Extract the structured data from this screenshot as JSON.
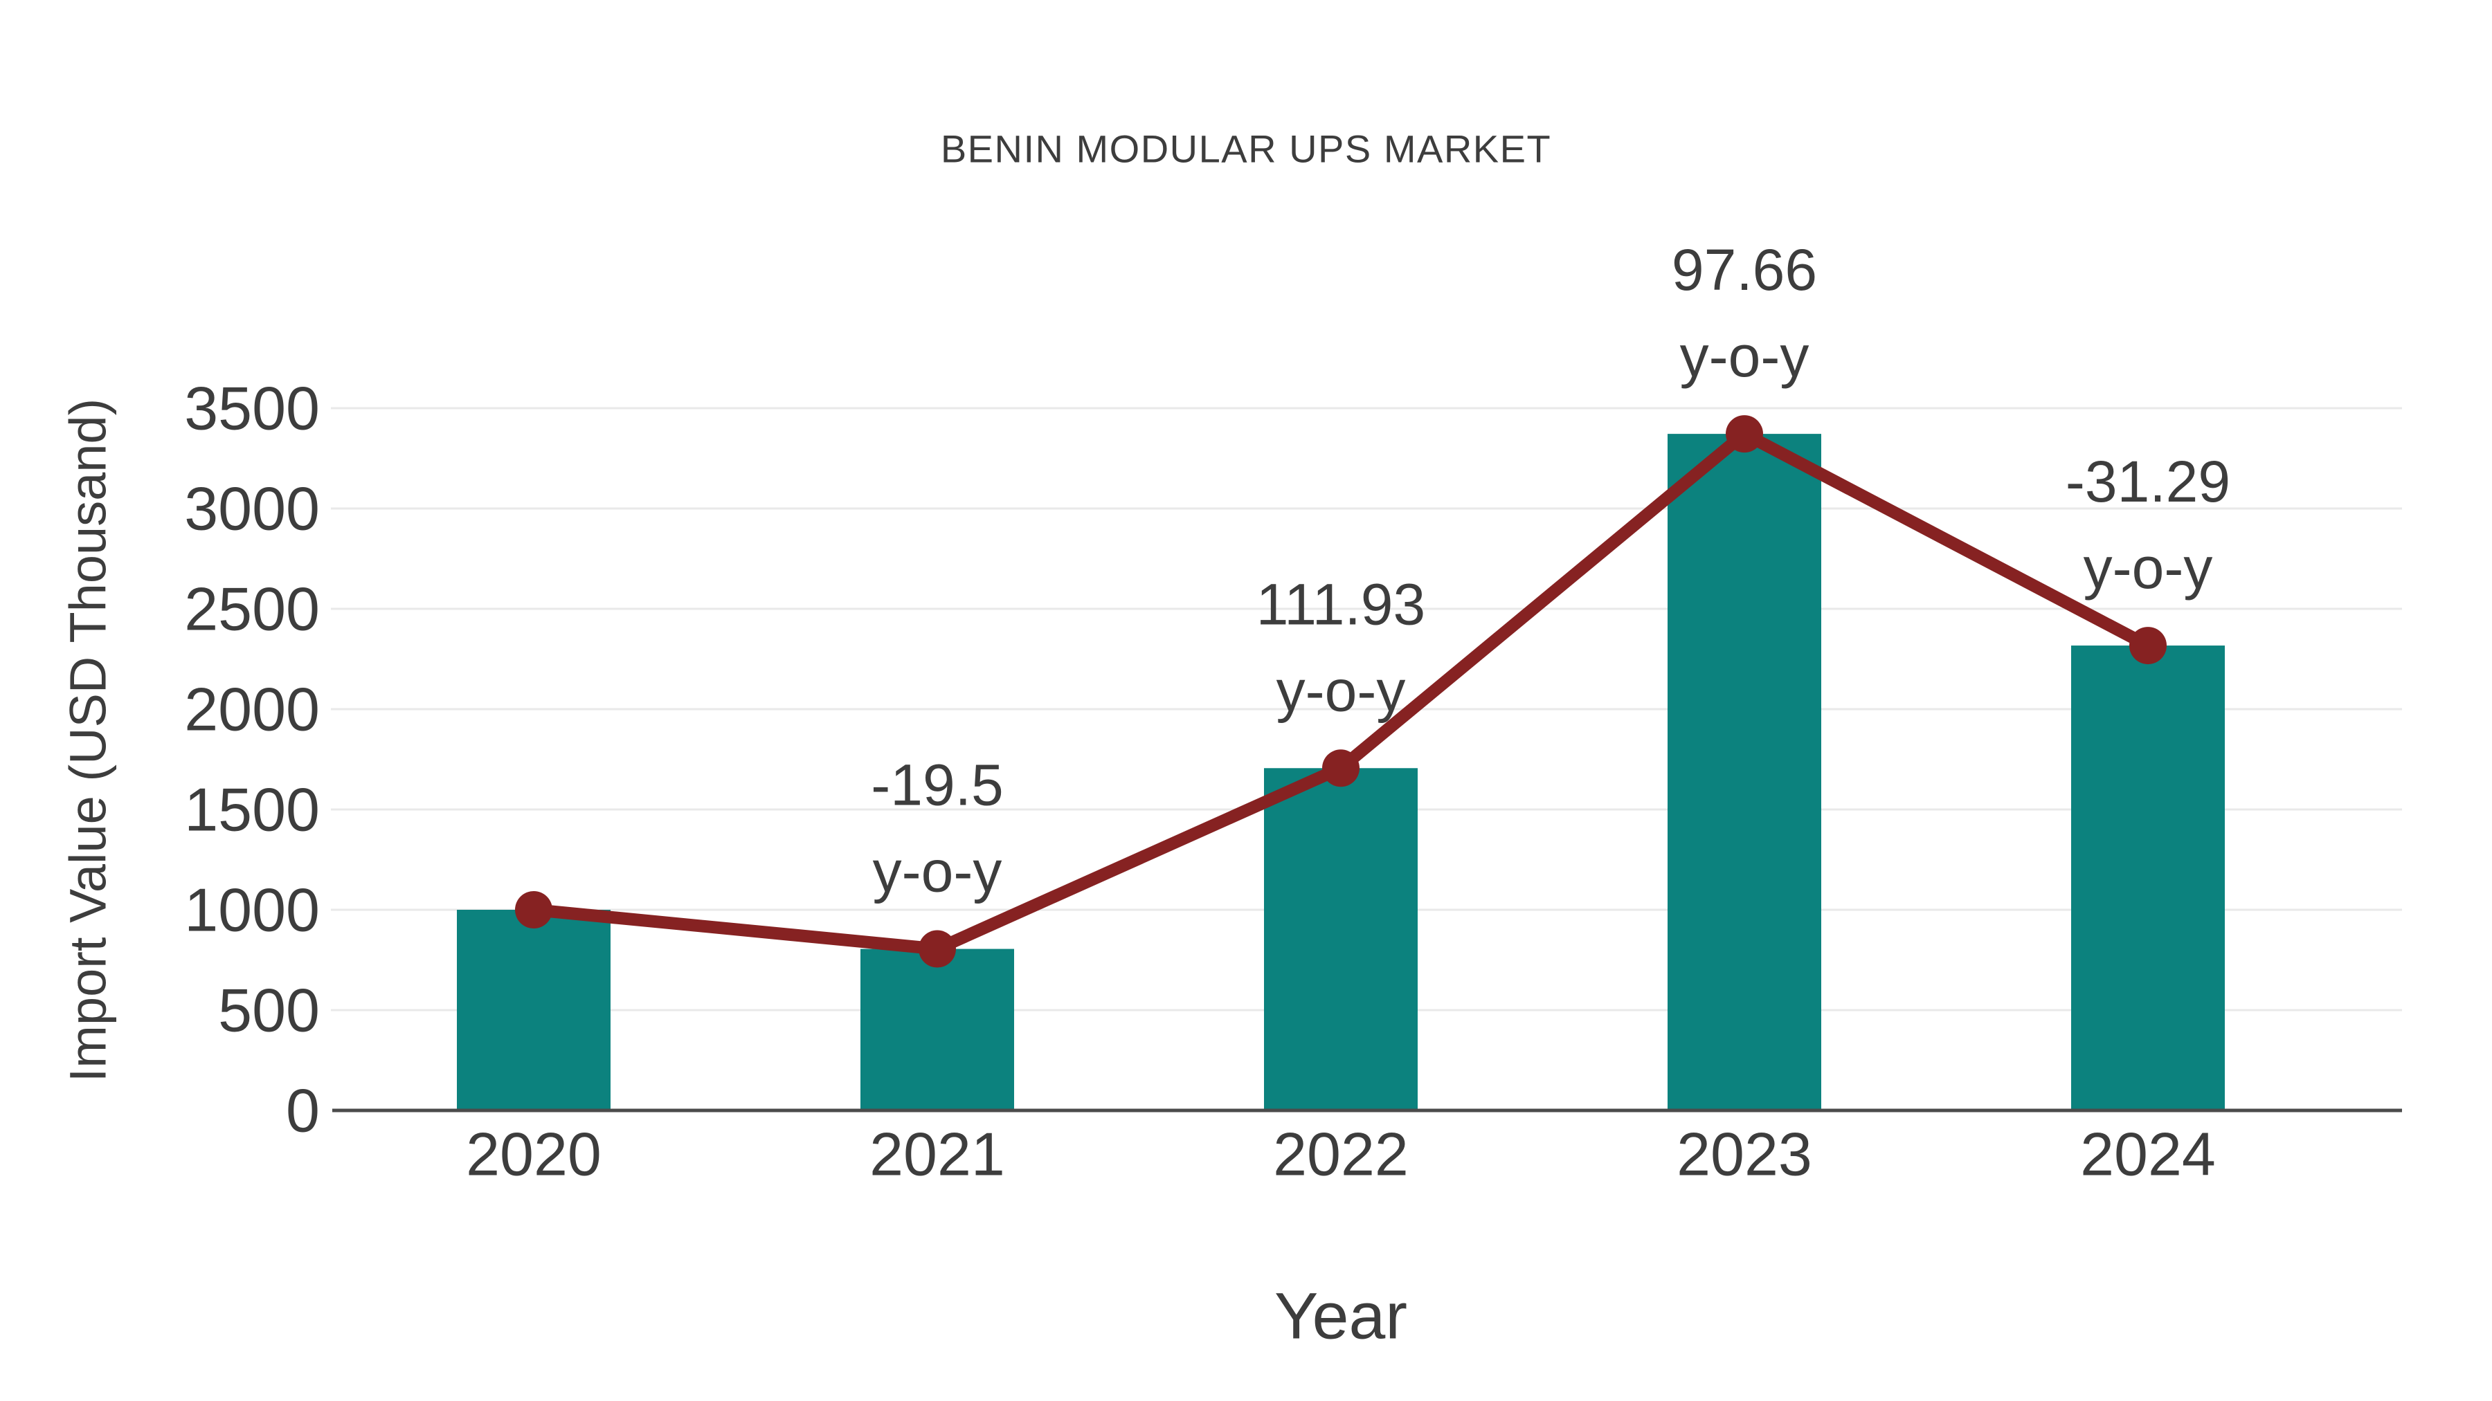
{
  "chart_data": {
    "type": "bar",
    "title": "BENIN MODULAR UPS MARKET",
    "xlabel": "Year",
    "ylabel": "Import Value (USD Thousand)",
    "categories": [
      "2020",
      "2021",
      "2022",
      "2023",
      "2024"
    ],
    "series": [
      {
        "name": "import-value-bars",
        "type": "bar",
        "values": [
          1000,
          805,
          1706,
          3372,
          2317
        ],
        "color": "#0C827E"
      },
      {
        "name": "import-value-trend-line",
        "type": "line",
        "values": [
          1000,
          805,
          1706,
          3372,
          2317
        ],
        "color": "#862222"
      }
    ],
    "annotations": [
      {
        "category": "2021",
        "value": "-19.5",
        "suffix": "y-o-y"
      },
      {
        "category": "2022",
        "value": "111.93",
        "suffix": "y-o-y"
      },
      {
        "category": "2023",
        "value": "97.66",
        "suffix": "y-o-y"
      },
      {
        "category": "2024",
        "value": "-31.29",
        "suffix": "y-o-y"
      }
    ],
    "yticks": [
      0,
      500,
      1000,
      1500,
      2000,
      2500,
      3000,
      3500
    ],
    "ylim": [
      0,
      3500
    ],
    "grid": true,
    "legend_position": "none"
  },
  "colors": {
    "grid": "#e9e9e9",
    "axis": "#4b4b4b",
    "text": "#3d3d3d",
    "background": "#ffffff"
  }
}
